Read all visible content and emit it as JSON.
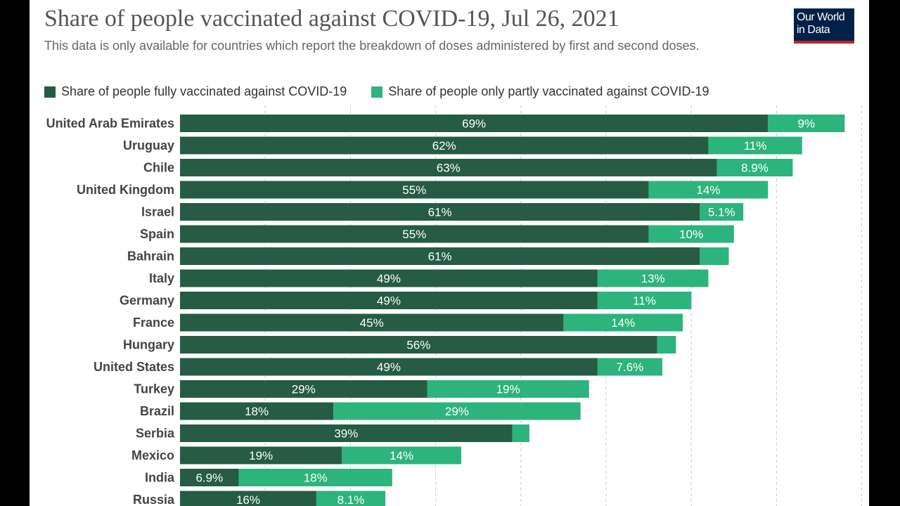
{
  "header": {
    "title": "Share of people vaccinated against COVID-19, Jul 26, 2021",
    "subtitle": "This data is only available for countries which report the breakdown of doses administered by first and second doses.",
    "logo_line1": "Our World",
    "logo_line2": "in Data"
  },
  "colors": {
    "full": "#255c43",
    "partial": "#2db37c",
    "grid": "#c8c8c8",
    "logo_bg": "#002147",
    "logo_accent": "#c0262d"
  },
  "chart_data": {
    "type": "bar",
    "orientation": "horizontal",
    "stacked": true,
    "title": "Share of people vaccinated against COVID-19, Jul 26, 2021",
    "legend_position": "top-left",
    "xlim": [
      0,
      80
    ],
    "grid": true,
    "categories": [
      "United Arab Emirates",
      "Uruguay",
      "Chile",
      "United Kingdom",
      "Israel",
      "Spain",
      "Bahrain",
      "Italy",
      "Germany",
      "France",
      "Hungary",
      "United States",
      "Turkey",
      "Brazil",
      "Serbia",
      "Mexico",
      "India",
      "Russia"
    ],
    "series": [
      {
        "name": "Share of people fully vaccinated against COVID-19",
        "values": [
          69,
          62,
          63,
          55,
          61,
          55,
          61,
          49,
          49,
          45,
          56,
          49,
          29,
          18,
          39,
          19,
          6.9,
          16
        ],
        "labels": [
          "69%",
          "62%",
          "63%",
          "55%",
          "61%",
          "55%",
          "61%",
          "49%",
          "49%",
          "45%",
          "56%",
          "49%",
          "29%",
          "18%",
          "39%",
          "19%",
          "6.9%",
          "16%"
        ]
      },
      {
        "name": "Share of people only partly vaccinated against COVID-19",
        "values": [
          9,
          11,
          8.9,
          14,
          5.1,
          10,
          3.4,
          13,
          11,
          14,
          2.2,
          7.6,
          19,
          29,
          2,
          14,
          18,
          8.1
        ],
        "labels": [
          "9%",
          "11%",
          "8.9%",
          "14%",
          "5.1%",
          "10%",
          "",
          "13%",
          "11%",
          "14%",
          "",
          "7.6%",
          "19%",
          "29%",
          "",
          "14%",
          "18%",
          "8.1%"
        ]
      }
    ]
  }
}
